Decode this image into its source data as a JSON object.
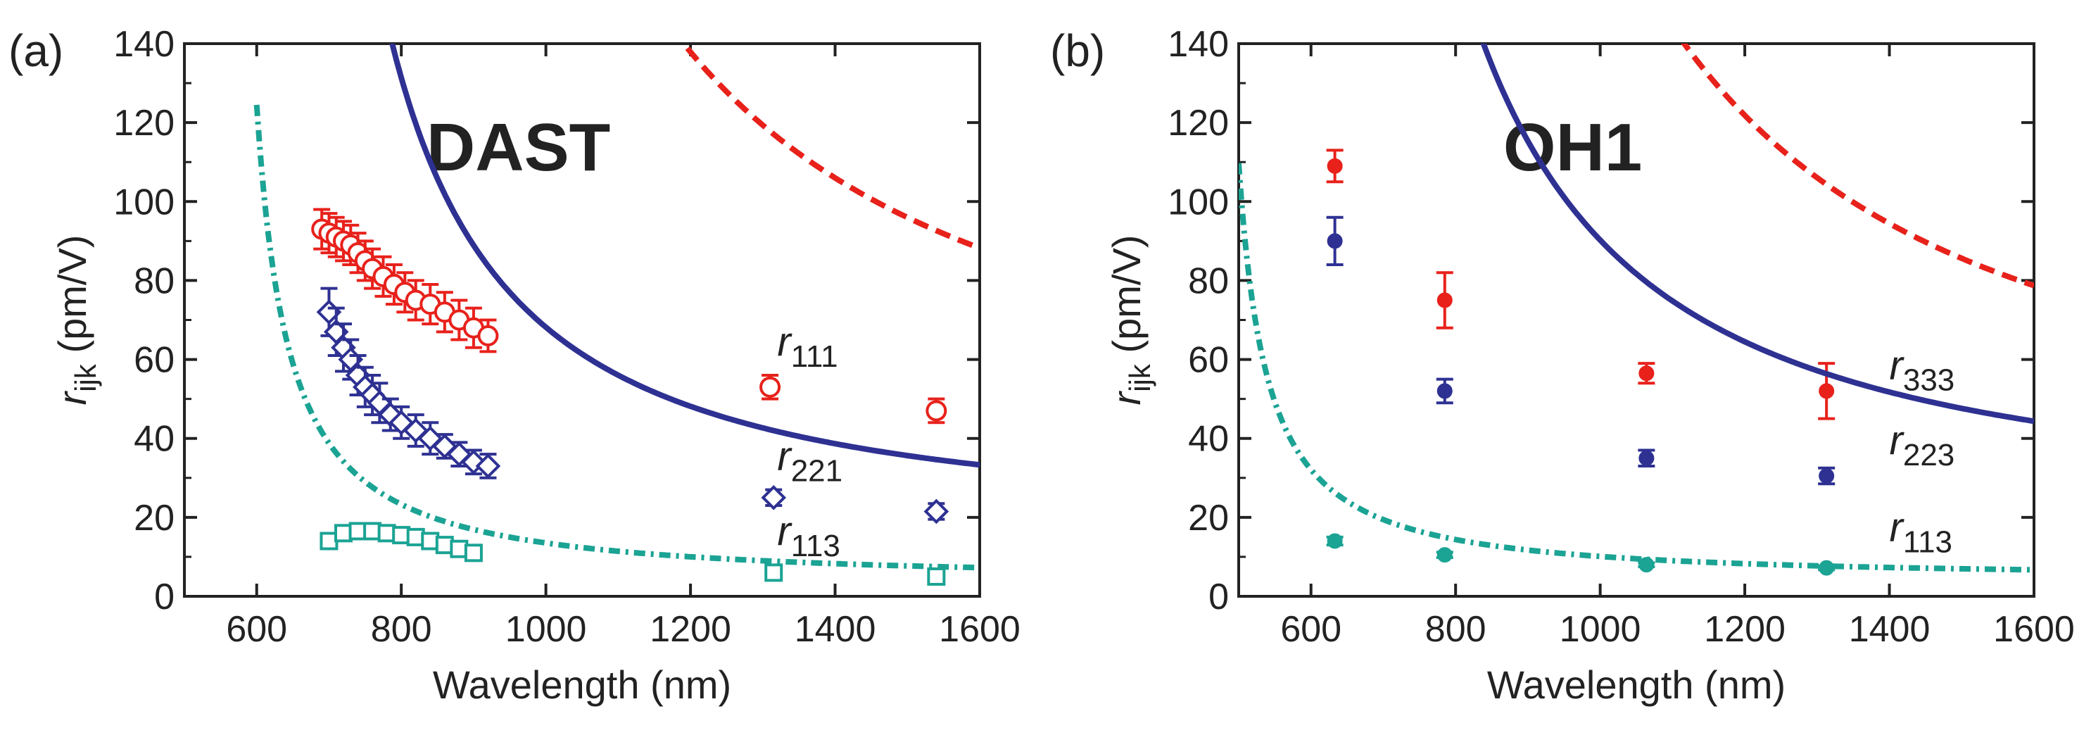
{
  "chart_data": [
    {
      "type": "scatter",
      "panel_label": "(a)",
      "title": "DAST",
      "xlabel": "Wavelength (nm)",
      "ylabel_main": "r",
      "ylabel_sub": "ijk",
      "ylabel_unit": " (pm/V)",
      "xlim": [
        500,
        1600
      ],
      "ylim": [
        0,
        140
      ],
      "xticks": [
        600,
        800,
        1000,
        1200,
        1400,
        1600
      ],
      "yticks": [
        0,
        20,
        40,
        60,
        80,
        100,
        120,
        140
      ],
      "series": [
        {
          "name": "r111",
          "label_main": "r",
          "label_sub": "111",
          "color": "#e8211b",
          "line": "dashed",
          "marker": "circle-open",
          "fit": {
            "A": 42.0,
            "B": 6.0,
            "lambda0": 630,
            "xmin": 660,
            "xmax": 1600
          },
          "points": [
            {
              "x": 690,
              "y": 93,
              "err": 5
            },
            {
              "x": 700,
              "y": 92,
              "err": 5
            },
            {
              "x": 710,
              "y": 91,
              "err": 5
            },
            {
              "x": 720,
              "y": 90,
              "err": 5
            },
            {
              "x": 730,
              "y": 89,
              "err": 5
            },
            {
              "x": 740,
              "y": 87,
              "err": 5
            },
            {
              "x": 750,
              "y": 85,
              "err": 5
            },
            {
              "x": 760,
              "y": 83,
              "err": 5
            },
            {
              "x": 775,
              "y": 81,
              "err": 5
            },
            {
              "x": 790,
              "y": 79,
              "err": 5
            },
            {
              "x": 805,
              "y": 77,
              "err": 5
            },
            {
              "x": 820,
              "y": 75,
              "err": 5
            },
            {
              "x": 840,
              "y": 74,
              "err": 5
            },
            {
              "x": 860,
              "y": 72,
              "err": 5
            },
            {
              "x": 880,
              "y": 70,
              "err": 5
            },
            {
              "x": 900,
              "y": 68,
              "err": 5
            },
            {
              "x": 920,
              "y": 66,
              "err": 4
            },
            {
              "x": 1310,
              "y": 53,
              "err": 3
            },
            {
              "x": 1540,
              "y": 47,
              "err": 3
            }
          ],
          "label_pos": [
            1320,
            61
          ]
        },
        {
          "name": "r221",
          "label_main": "r",
          "label_sub": "221",
          "color": "#2e3192",
          "line": "solid",
          "marker": "diamond-open",
          "fit": {
            "A": 19.0,
            "B": 4.6,
            "lambda0": 600,
            "xmin": 628,
            "xmax": 1600
          },
          "points": [
            {
              "x": 700,
              "y": 72,
              "err": 6
            },
            {
              "x": 710,
              "y": 67,
              "err": 6
            },
            {
              "x": 720,
              "y": 63,
              "err": 6
            },
            {
              "x": 730,
              "y": 60,
              "err": 5
            },
            {
              "x": 740,
              "y": 56,
              "err": 5
            },
            {
              "x": 750,
              "y": 53,
              "err": 5
            },
            {
              "x": 760,
              "y": 51,
              "err": 5
            },
            {
              "x": 770,
              "y": 49,
              "err": 5
            },
            {
              "x": 785,
              "y": 46,
              "err": 4
            },
            {
              "x": 800,
              "y": 44,
              "err": 4
            },
            {
              "x": 820,
              "y": 42,
              "err": 4
            },
            {
              "x": 840,
              "y": 40,
              "err": 4
            },
            {
              "x": 860,
              "y": 38,
              "err": 3
            },
            {
              "x": 880,
              "y": 36,
              "err": 3
            },
            {
              "x": 900,
              "y": 34,
              "err": 3
            },
            {
              "x": 920,
              "y": 33,
              "err": 3
            },
            {
              "x": 1315,
              "y": 25,
              "err": 2
            },
            {
              "x": 1540,
              "y": 21.5,
              "err": 2
            }
          ],
          "label_pos": [
            1320,
            32
          ]
        },
        {
          "name": "r113",
          "label_main": "r",
          "label_sub": "113",
          "color": "#1ba394",
          "line": "dashdot",
          "marker": "square-open",
          "fit": {
            "A": 4.5,
            "B": 4.5,
            "lambda0": 555,
            "xmin": 600,
            "xmax": 1600
          },
          "points": [
            {
              "x": 700,
              "y": 14,
              "err": 1.5
            },
            {
              "x": 720,
              "y": 16,
              "err": 1.5
            },
            {
              "x": 740,
              "y": 16.5,
              "err": 1.5
            },
            {
              "x": 760,
              "y": 16.5,
              "err": 1.5
            },
            {
              "x": 780,
              "y": 16,
              "err": 1.5
            },
            {
              "x": 800,
              "y": 15.5,
              "err": 1.5
            },
            {
              "x": 820,
              "y": 15,
              "err": 1.5
            },
            {
              "x": 840,
              "y": 14,
              "err": 1.5
            },
            {
              "x": 860,
              "y": 13,
              "err": 1.5
            },
            {
              "x": 880,
              "y": 12,
              "err": 1.5
            },
            {
              "x": 900,
              "y": 11,
              "err": 1.5
            },
            {
              "x": 1315,
              "y": 6,
              "err": 1
            },
            {
              "x": 1540,
              "y": 5,
              "err": 1
            }
          ],
          "label_pos": [
            1320,
            13
          ]
        }
      ]
    },
    {
      "type": "scatter",
      "panel_label": "(b)",
      "title": "OH1",
      "xlabel": "Wavelength (nm)",
      "ylabel_main": "r",
      "ylabel_sub": "ijk",
      "ylabel_unit": " (pm/V)",
      "xlim": [
        500,
        1600
      ],
      "ylim": [
        0,
        140
      ],
      "xticks": [
        600,
        800,
        1000,
        1200,
        1400,
        1600
      ],
      "yticks": [
        0,
        20,
        40,
        60,
        80,
        100,
        120,
        140
      ],
      "series": [
        {
          "name": "r333",
          "label_main": "r",
          "label_sub": "333",
          "color": "#e8211b",
          "line": "dashed",
          "marker": "circle-filled",
          "fit": {
            "A": 36.0,
            "B": 8.0,
            "lambda0": 575,
            "xmin": 636,
            "xmax": 1600
          },
          "points": [
            {
              "x": 633,
              "y": 109,
              "err": 4
            },
            {
              "x": 785,
              "y": 75,
              "err": 7
            },
            {
              "x": 1064,
              "y": 56.5,
              "err": 2.5
            },
            {
              "x": 1313,
              "y": 52,
              "err": 7
            }
          ],
          "label_pos": [
            1400,
            55
          ]
        },
        {
          "name": "r223",
          "label_main": "r",
          "label_sub": "223",
          "color": "#2e3192",
          "line": "solid",
          "marker": "circle-filled",
          "fit": {
            "A": 24.0,
            "B": 6.2,
            "lambda0": 555,
            "xmin": 574,
            "xmax": 1600
          },
          "points": [
            {
              "x": 633,
              "y": 90,
              "err": 6
            },
            {
              "x": 785,
              "y": 52,
              "err": 3
            },
            {
              "x": 1064,
              "y": 35,
              "err": 2
            },
            {
              "x": 1313,
              "y": 30.5,
              "err": 2
            }
          ],
          "label_pos": [
            1400,
            36
          ]
        },
        {
          "name": "r113",
          "label_main": "r",
          "label_sub": "113",
          "color": "#1ba394",
          "line": "dashdot",
          "marker": "circle-filled",
          "fit": {
            "A": 5.0,
            "B": 3.8,
            "lambda0": 460,
            "xmin": 500,
            "xmax": 1600
          },
          "points": [
            {
              "x": 633,
              "y": 14,
              "err": 1
            },
            {
              "x": 785,
              "y": 10.5,
              "err": 0.7
            },
            {
              "x": 1064,
              "y": 8,
              "err": 0.5
            },
            {
              "x": 1313,
              "y": 7.2,
              "err": 0.5
            }
          ],
          "label_pos": [
            1400,
            14
          ]
        }
      ]
    }
  ]
}
